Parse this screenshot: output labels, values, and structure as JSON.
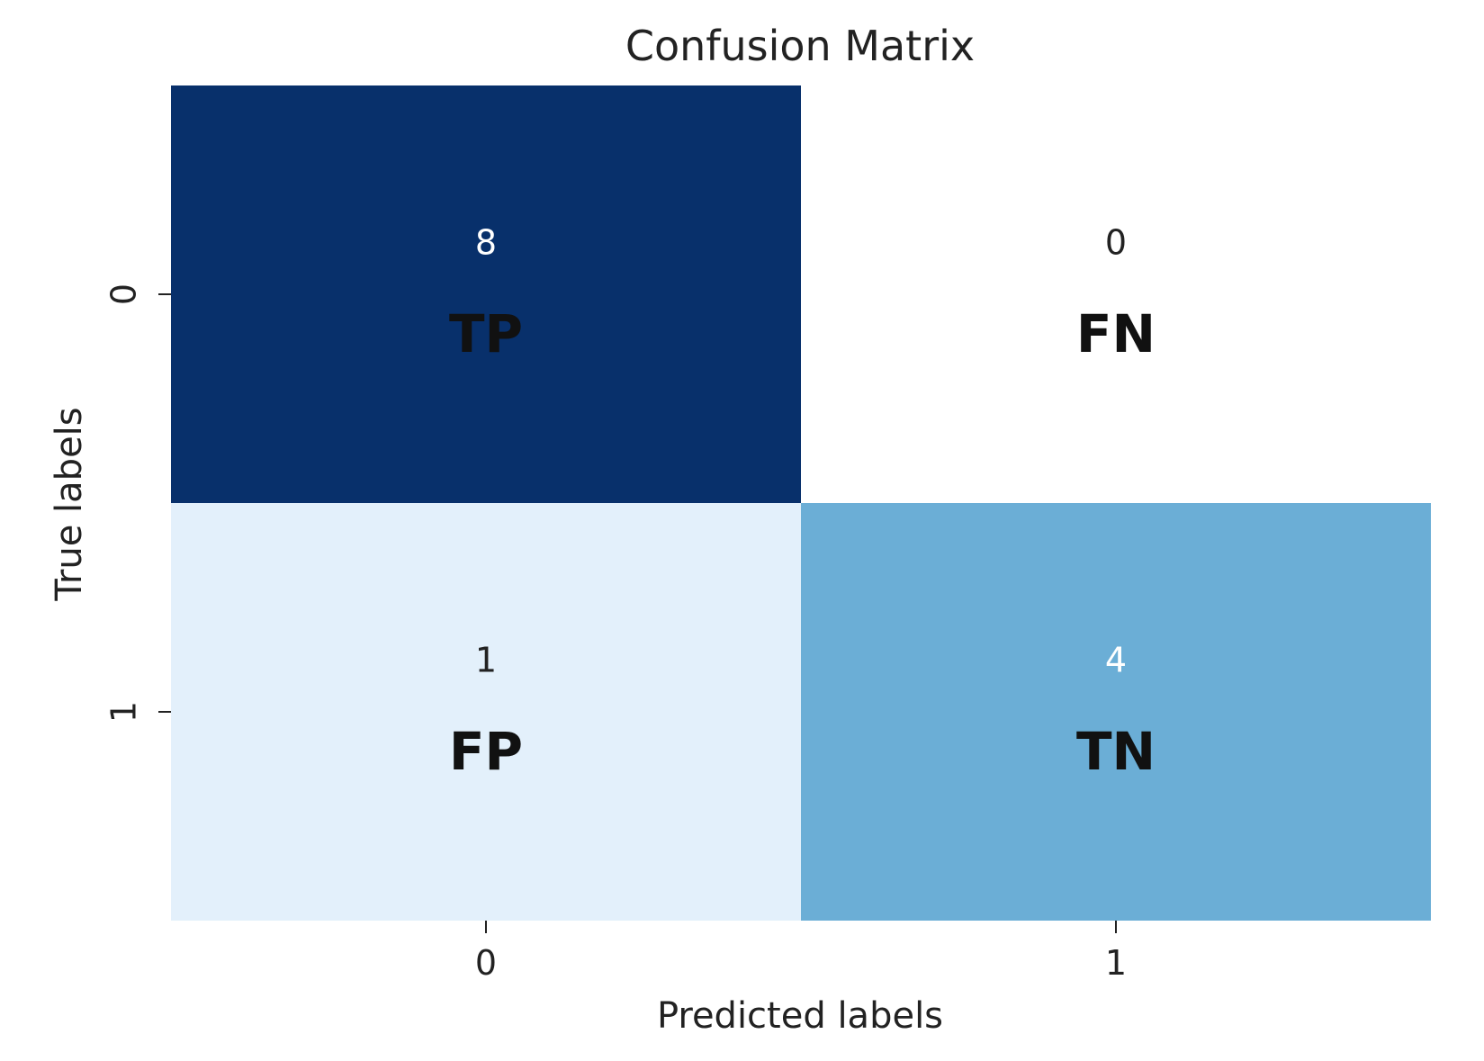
{
  "chart_data": {
    "type": "heatmap",
    "title": "Confusion Matrix",
    "xlabel": "Predicted labels",
    "ylabel": "True labels",
    "x_categories": [
      "0",
      "1"
    ],
    "y_categories": [
      "0",
      "1"
    ],
    "values": [
      [
        8,
        0
      ],
      [
        1,
        4
      ]
    ],
    "cell_labels": [
      [
        "TP",
        "FN"
      ],
      [
        "FP",
        "TN"
      ]
    ],
    "colormap": "Blues",
    "value_range": [
      0,
      8
    ],
    "colorbar": false,
    "cell_colors": [
      [
        "#08306b",
        "#ffffff"
      ],
      [
        "#e3f0fb",
        "#6baed6"
      ]
    ],
    "value_text_colors": [
      [
        "#ffffff",
        "#222222"
      ],
      [
        "#222222",
        "#ffffff"
      ]
    ],
    "label_text_color": "#111111",
    "text_color": "#222222"
  }
}
